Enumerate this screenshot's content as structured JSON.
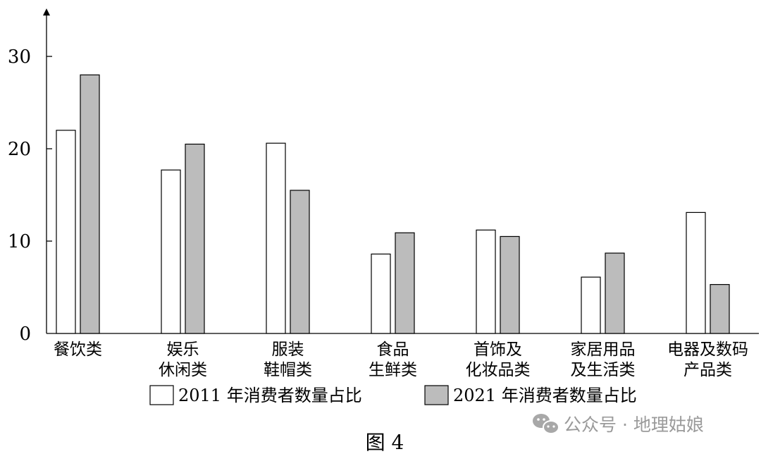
{
  "chart_data": {
    "type": "bar",
    "categories": [
      [
        "餐饮类"
      ],
      [
        "娱乐",
        "休闲类"
      ],
      [
        "服装",
        "鞋帽类"
      ],
      [
        "食品",
        "生鲜类"
      ],
      [
        "首饰及",
        "化妆品类"
      ],
      [
        "家居用品",
        "及生活类"
      ],
      [
        "电器及数码",
        "产品类"
      ]
    ],
    "series": [
      {
        "name": "2011 年消费者数量占比",
        "values": [
          22,
          17.7,
          20.6,
          8.6,
          11.2,
          6.1,
          13.1
        ],
        "color": "#ffffff"
      },
      {
        "name": "2021 年消费者数量占比",
        "values": [
          28,
          20.5,
          15.5,
          10.9,
          10.5,
          8.7,
          5.3
        ],
        "color": "#bcbcbc"
      }
    ],
    "yticks": [
      "0",
      "10",
      "20",
      "30"
    ],
    "ylim": [
      0,
      35
    ],
    "grid": false,
    "legend_position": "bottom"
  },
  "caption": "图 4",
  "watermark": "公众号 · 地理姑娘",
  "colors": {
    "bar_2011": "#ffffff",
    "bar_2021": "#bcbcbc",
    "stroke": "#000000",
    "watermark": "#9a9a9a"
  }
}
